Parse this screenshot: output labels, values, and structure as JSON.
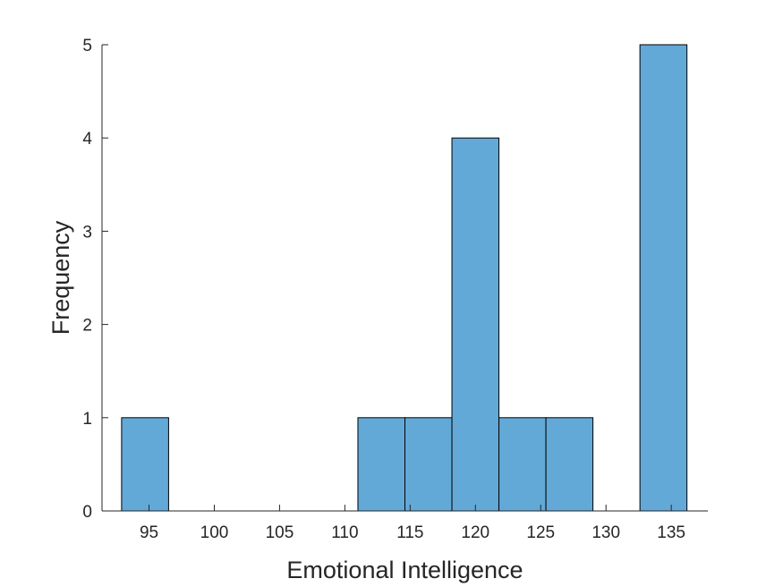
{
  "chart_data": {
    "type": "bar",
    "subtype": "histogram",
    "title": "",
    "xlabel": "Emotional Intelligence",
    "ylabel": "Frequency",
    "bar_color": "#63a9d7",
    "edge_color": "#000000",
    "axis_color": "#262626",
    "grid": false,
    "xlim": [
      91.4,
      137.8
    ],
    "ylim": [
      0,
      5
    ],
    "xticks": [
      95,
      100,
      105,
      110,
      115,
      120,
      125,
      130,
      135
    ],
    "yticks": [
      0,
      1,
      2,
      3,
      4,
      5
    ],
    "bins": [
      {
        "x0": 92.9,
        "x1": 96.5,
        "count": 1
      },
      {
        "x0": 96.5,
        "x1": 100.1,
        "count": 0
      },
      {
        "x0": 100.1,
        "x1": 103.7,
        "count": 0
      },
      {
        "x0": 103.7,
        "x1": 107.3,
        "count": 0
      },
      {
        "x0": 107.3,
        "x1": 111.0,
        "count": 0
      },
      {
        "x0": 111.0,
        "x1": 114.6,
        "count": 1
      },
      {
        "x0": 114.6,
        "x1": 118.2,
        "count": 1
      },
      {
        "x0": 118.2,
        "x1": 121.8,
        "count": 4
      },
      {
        "x0": 121.8,
        "x1": 125.4,
        "count": 1
      },
      {
        "x0": 125.4,
        "x1": 129.0,
        "count": 1
      },
      {
        "x0": 129.0,
        "x1": 132.6,
        "count": 0
      },
      {
        "x0": 132.6,
        "x1": 136.2,
        "count": 5
      }
    ]
  }
}
